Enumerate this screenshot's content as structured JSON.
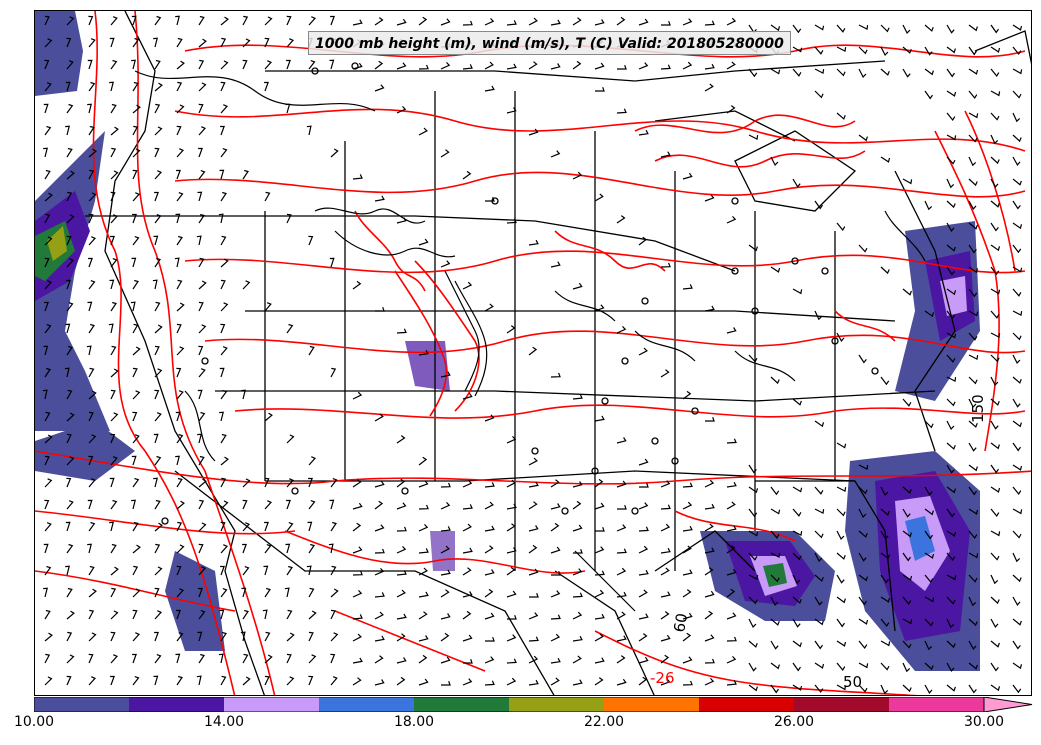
{
  "title": "1000 mb height (m), wind (m/s), T (C) Valid: 201805280000",
  "colorbar": {
    "colors": [
      "#4b4e9b",
      "#4a16a2",
      "#c79bf7",
      "#3c74de",
      "#217a3a",
      "#95a014",
      "#ff7400",
      "#d80000",
      "#a10a2a",
      "#eb3a9b",
      "#ff9bd2"
    ],
    "tick_labels": [
      "10.00",
      "14.00",
      "18.00",
      "22.00",
      "26.00",
      "30.00"
    ],
    "tick_values": [
      10,
      14,
      18,
      22,
      26,
      30
    ],
    "min": 10,
    "max": 32,
    "step": 2,
    "extend": "max"
  },
  "contour_labels": [
    "150",
    "60",
    "50",
    "-26"
  ],
  "colors": {
    "temperature_contour": "#ff0000",
    "height_contour": "#000000",
    "borders": "#000000",
    "wind_barbs": "#000000"
  }
}
